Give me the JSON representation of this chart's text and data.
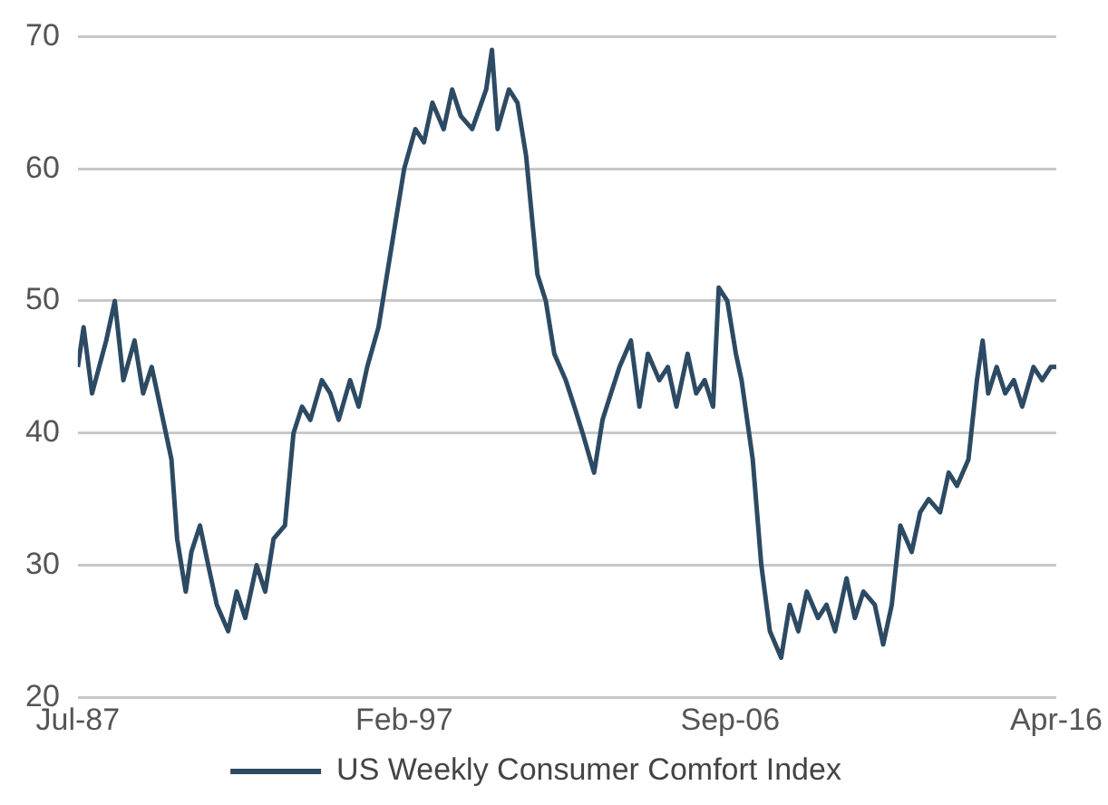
{
  "chart_data": {
    "type": "line",
    "x": [
      "1987-07",
      "1987-09",
      "1987-12",
      "1988-05",
      "1988-08",
      "1988-11",
      "1989-03",
      "1989-06",
      "1989-09",
      "1990-01",
      "1990-04",
      "1990-06",
      "1990-09",
      "1990-11",
      "1991-02",
      "1991-05",
      "1991-08",
      "1991-12",
      "1992-03",
      "1992-06",
      "1992-10",
      "1993-01",
      "1993-04",
      "1993-08",
      "1993-11",
      "1994-02",
      "1994-05",
      "1994-09",
      "1994-12",
      "1995-03",
      "1995-07",
      "1995-10",
      "1996-01",
      "1996-05",
      "1996-08",
      "1996-11",
      "1997-02",
      "1997-06",
      "1997-09",
      "1997-12",
      "1998-04",
      "1998-07",
      "1998-10",
      "1999-02",
      "1999-07",
      "1999-09",
      "1999-11",
      "2000-03",
      "2000-06",
      "2000-09",
      "2001-01",
      "2001-04",
      "2001-07",
      "2001-11",
      "2002-02",
      "2002-05",
      "2002-09",
      "2002-12",
      "2003-03",
      "2003-06",
      "2003-10",
      "2004-01",
      "2004-04",
      "2004-08",
      "2004-11",
      "2005-02",
      "2005-06",
      "2005-09",
      "2005-12",
      "2006-03",
      "2006-05",
      "2006-08",
      "2006-11",
      "2007-01",
      "2007-05",
      "2007-08",
      "2007-11",
      "2008-03",
      "2008-06",
      "2008-09",
      "2008-12",
      "2009-04",
      "2009-07",
      "2009-10",
      "2010-02",
      "2010-05",
      "2010-08",
      "2010-12",
      "2011-03",
      "2011-06",
      "2011-09",
      "2012-01",
      "2012-04",
      "2012-07",
      "2012-11",
      "2013-02",
      "2013-05",
      "2013-09",
      "2013-12",
      "2014-02",
      "2014-04",
      "2014-07",
      "2014-10",
      "2015-01",
      "2015-04",
      "2015-08",
      "2015-11",
      "2016-02",
      "2016-04"
    ],
    "series": [
      {
        "name": "US Weekly Consumer Comfort Index",
        "color": "#2d4a63",
        "values": [
          45,
          48,
          43,
          47,
          50,
          44,
          47,
          43,
          45,
          41,
          38,
          32,
          28,
          31,
          33,
          30,
          27,
          25,
          28,
          26,
          30,
          28,
          32,
          33,
          40,
          42,
          41,
          44,
          43,
          41,
          44,
          42,
          45,
          48,
          52,
          56,
          60,
          63,
          62,
          65,
          63,
          66,
          64,
          63,
          66,
          69,
          63,
          66,
          65,
          61,
          52,
          50,
          46,
          44,
          42,
          40,
          37,
          41,
          43,
          45,
          47,
          42,
          46,
          44,
          45,
          42,
          46,
          43,
          44,
          42,
          51,
          50,
          46,
          44,
          38,
          30,
          25,
          23,
          27,
          25,
          28,
          26,
          27,
          25,
          29,
          26,
          28,
          27,
          24,
          27,
          33,
          31,
          34,
          35,
          34,
          37,
          36,
          38,
          44,
          47,
          43,
          45,
          43,
          44,
          42,
          45,
          44,
          45,
          45
        ]
      }
    ],
    "xlim": [
      "1987-07",
      "2016-04"
    ],
    "xticks": [
      {
        "value": "1987-07",
        "label": "Jul-87"
      },
      {
        "value": "1997-02",
        "label": "Feb-97"
      },
      {
        "value": "2006-09",
        "label": "Sep-06"
      },
      {
        "value": "2016-04",
        "label": "Apr-16"
      }
    ],
    "ylim": [
      20,
      70
    ],
    "yticks": [
      20,
      30,
      40,
      50,
      60,
      70
    ],
    "grid": "y",
    "legend": "bottom",
    "marker": "none",
    "line_style": "solid"
  }
}
